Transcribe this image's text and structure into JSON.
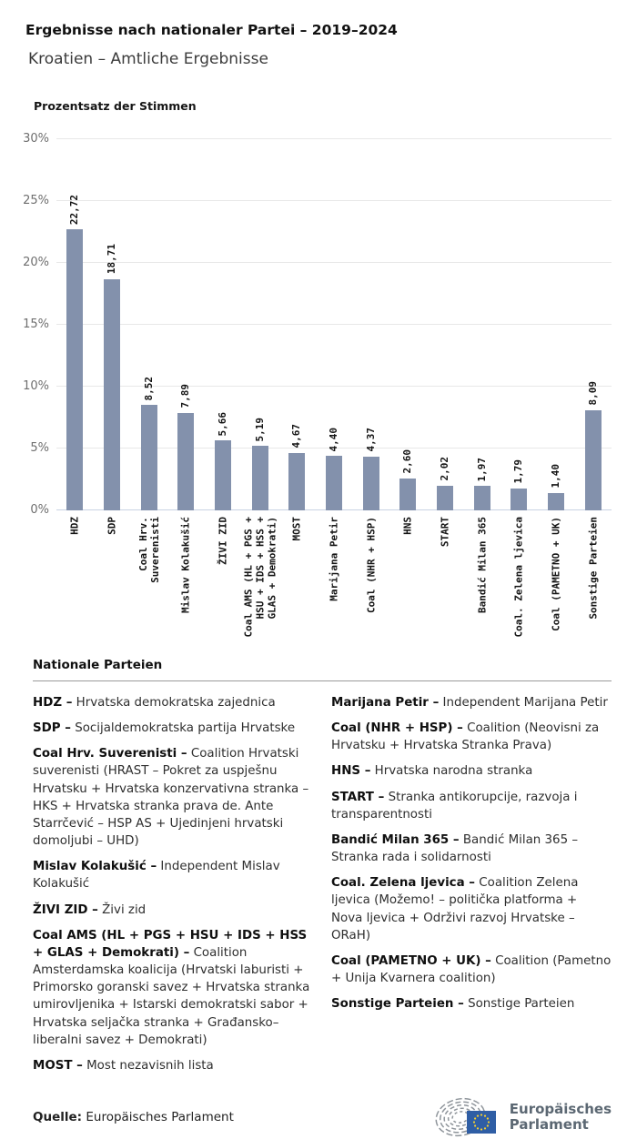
{
  "header": {
    "title": "Ergebnisse nach nationaler Partei – 2019–2024",
    "subtitle": "Kroatien – Amtliche Ergebnisse"
  },
  "chart_data": {
    "type": "bar",
    "title": "Prozentsatz der Stimmen",
    "categories": [
      "HDZ",
      "SDP",
      "Coal Hrv.\nSuverenisti",
      "Mislav Kolakušić",
      "ŽIVI ZID",
      "Coal AMS (HL + PGS +\nHSU + IDS + HSS +\nGLAS + Demokrati)",
      "MOST",
      "Marijana Petir",
      "Coal (NHR + HSP)",
      "HNS",
      "START",
      "Bandić Milan 365",
      "Coal. Zelena ljevica",
      "Coal (PAMETNO + UK)",
      "Sonstige Parteien"
    ],
    "values": [
      22.72,
      18.71,
      8.52,
      7.89,
      5.66,
      5.19,
      4.67,
      4.4,
      4.37,
      2.6,
      2.02,
      1.97,
      1.79,
      1.4,
      8.09
    ],
    "value_labels": [
      "22,72",
      "18,71",
      "8,52",
      "7,89",
      "5,66",
      "5,19",
      "4,67",
      "4,40",
      "4,37",
      "2,60",
      "2,02",
      "1,97",
      "1,79",
      "1,40",
      "8,09"
    ],
    "yticks": [
      "0%",
      "5%",
      "10%",
      "15%",
      "20%",
      "25%",
      "30%"
    ],
    "ylim": [
      0,
      30
    ],
    "grid": true,
    "bar_color": "#8391ac",
    "baseline_color": "#c9d3e4",
    "xlabel": "",
    "ylabel": "Prozentsatz der Stimmen",
    "legend_position": "below-as-glossary"
  },
  "legend": {
    "heading": "Nationale Parteien",
    "left": [
      {
        "term": "HDZ –",
        "desc": "Hrvatska demokratska zajednica"
      },
      {
        "term": "SDP –",
        "desc": "Socijaldemokratska partija Hrvatske"
      },
      {
        "term": "Coal Hrv. Suverenisti –",
        "desc": "Coalition Hrvatski suverenisti (HRAST – Pokret za uspješnu Hrvatsku + Hrvatska konzervativna stranka – HKS + Hrvatska stranka prava de. Ante Starrčević – HSP AS + Ujedinjeni hrvatski domoljubi – UHD)"
      },
      {
        "term": "Mislav Kolakušić –",
        "desc": "Independent Mislav Kolakušić"
      },
      {
        "term": "ŽIVI ZID –",
        "desc": "Živi zid"
      },
      {
        "term": "Coal AMS (HL + PGS + HSU + IDS + HSS + GLAS + Demokrati) –",
        "desc": "Coalition Amsterdamska koalicija (Hrvatski laburisti + Primorsko goranski savez + Hrvatska stranka umirovljenika + Istarski demokratski sabor + Hrvatska seljačka stranka + Građansko–liberalni savez + Demokrati)"
      },
      {
        "term": "MOST –",
        "desc": "Most nezavisnih lista"
      }
    ],
    "right": [
      {
        "term": "Marijana Petir –",
        "desc": "Independent Marijana Petir"
      },
      {
        "term": "Coal (NHR + HSP) –",
        "desc": "Coalition (Neovisni za Hrvatsku + Hrvatska Stranka Prava)"
      },
      {
        "term": "HNS –",
        "desc": "Hrvatska narodna stranka"
      },
      {
        "term": "START –",
        "desc": "Stranka antikorupcije, razvoja i transparentnosti"
      },
      {
        "term": "Bandić Milan 365 –",
        "desc": "Bandić Milan 365 – Stranka rada i solidarnosti"
      },
      {
        "term": "Coal. Zelena ljevica –",
        "desc": "Coalition Zelena ljevica (Možemo! – politička platforma + Nova ljevica + Održivi razvoj Hrvatske – ORaH)"
      },
      {
        "term": "Coal (PAMETNO + UK) –",
        "desc": "Coalition (Pametno + Unija Kvarnera coalition)"
      },
      {
        "term": "Sonstige Parteien –",
        "desc": "Sonstige Parteien"
      }
    ]
  },
  "footer": {
    "source_label": "Quelle:",
    "source_value": " Europäisches Parlament",
    "logo_line1": "Europäisches",
    "logo_line2": "Parlament"
  },
  "colors": {
    "bar": "#8391ac",
    "baseline": "#c9d3e4",
    "gridline": "#e8e8e8",
    "logo_blue": "#2f5ea5",
    "logo_star": "#f8d12e",
    "logo_gray": "#8f959b"
  }
}
